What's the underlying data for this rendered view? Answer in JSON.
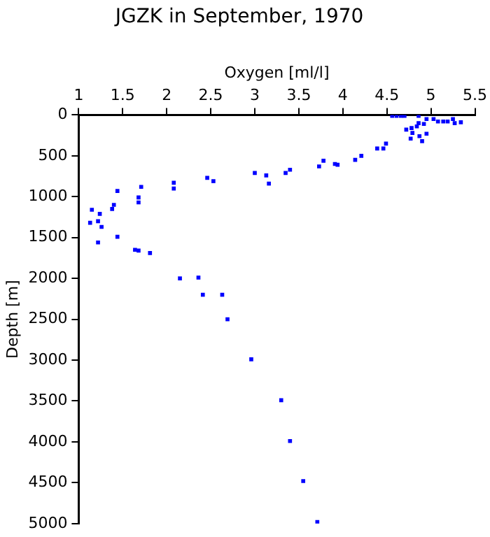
{
  "chart_data": {
    "type": "scatter",
    "title": "JGZK in September, 1970",
    "xlabel": "Oxygen [ml/l]",
    "ylabel": "Depth [m]",
    "x": [
      2.15,
      2.36,
      2.41,
      2.63,
      2.69,
      2.96,
      3.3,
      3.4,
      3.55,
      3.71,
      1.15,
      1.13,
      1.22,
      1.24,
      1.26,
      1.22,
      1.38,
      1.4,
      1.44,
      1.44,
      1.64,
      1.68,
      1.81,
      1.68,
      1.68,
      1.71,
      2.08,
      2.08,
      2.46,
      2.53,
      3.0,
      3.13,
      3.16,
      3.35,
      3.4,
      3.73,
      3.78,
      3.91,
      3.94,
      4.14,
      4.21,
      4.39,
      4.46,
      4.49,
      4.56,
      4.61,
      4.66,
      4.7,
      4.86,
      4.72,
      4.78,
      4.79,
      4.77,
      4.84,
      4.87,
      4.9,
      4.86,
      4.92,
      4.95,
      4.95,
      5.03,
      5.08,
      5.14,
      5.19,
      5.25,
      5.27,
      5.34
    ],
    "values": [
      2000,
      1990,
      2200,
      2200,
      2500,
      2990,
      3490,
      3990,
      4480,
      4980,
      1160,
      1320,
      1300,
      1210,
      1370,
      1560,
      1150,
      1100,
      930,
      1490,
      1650,
      1660,
      1690,
      1010,
      1070,
      880,
      830,
      900,
      770,
      810,
      710,
      740,
      840,
      710,
      670,
      630,
      560,
      600,
      610,
      550,
      500,
      410,
      410,
      350,
      10,
      10,
      10,
      10,
      10,
      180,
      160,
      220,
      290,
      140,
      260,
      320,
      100,
      110,
      50,
      230,
      50,
      80,
      80,
      80,
      50,
      100,
      90
    ],
    "color": "#0000ff",
    "marker": "square",
    "xlim": [
      1,
      5.5
    ],
    "xticks": [
      1,
      1.5,
      2,
      2.5,
      3,
      3.5,
      4,
      4.5,
      5,
      5.5
    ],
    "ylim": [
      5000,
      0
    ],
    "yticks": [
      0,
      500,
      1000,
      1500,
      2000,
      2500,
      3000,
      3500,
      4000,
      4500,
      5000
    ],
    "grid": false,
    "legend": false
  }
}
